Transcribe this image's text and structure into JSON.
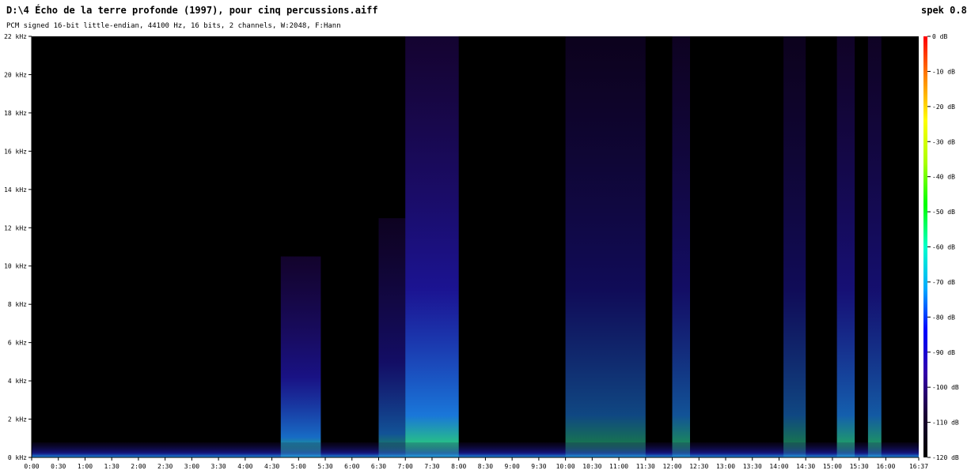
{
  "header": {
    "title": "D:\\4 Écho de la terre profonde (1997), pour cinq percussions.aiff",
    "subtitle": "PCM signed 16-bit little-endian, 44100 Hz, 16 bits, 2 channels, W:2048, F:Hann",
    "app_label": "spek 0.8"
  },
  "chart_data": {
    "type": "heatmap",
    "title": "D:\\4 Écho de la terre profonde (1997), pour cinq percussions.aiff",
    "subtitle": "PCM signed 16-bit little-endian, 44100 Hz, 16 bits, 2 channels, W:2048, F:Hann",
    "x_ticks": [
      "0:00",
      "0:30",
      "1:00",
      "1:30",
      "2:00",
      "2:30",
      "3:00",
      "3:30",
      "4:00",
      "4:30",
      "5:00",
      "5:30",
      "6:00",
      "6:30",
      "7:00",
      "7:30",
      "8:00",
      "8:30",
      "9:00",
      "9:30",
      "10:00",
      "10:30",
      "11:00",
      "11:30",
      "12:00",
      "12:30",
      "13:00",
      "13:30",
      "14:00",
      "14:30",
      "15:00",
      "15:30",
      "16:00",
      "16:37"
    ],
    "xlim_seconds": [
      0,
      997
    ],
    "y_ticks": [
      "0 kHz",
      "2 kHz",
      "4 kHz",
      "6 kHz",
      "8 kHz",
      "10 kHz",
      "12 kHz",
      "14 kHz",
      "16 kHz",
      "18 kHz",
      "20 kHz",
      "22 kHz"
    ],
    "ylim_khz": [
      0,
      22
    ],
    "colorbar_ticks": [
      "0 dB",
      "-10 dB",
      "-20 dB",
      "-30 dB",
      "-40 dB",
      "-50 dB",
      "-60 dB",
      "-70 dB",
      "-80 dB",
      "-90 dB",
      "-100 dB",
      "-110 dB",
      "-120 dB"
    ],
    "colorbar_range_db": [
      -120,
      0
    ],
    "colormap": [
      "#000000",
      "#1a0033",
      "#3300aa",
      "#0000ff",
      "#00aaff",
      "#00ffcc",
      "#00ff00",
      "#aaff00",
      "#ffff00",
      "#ff8800",
      "#ff0000"
    ],
    "events": [
      {
        "start": 280,
        "end": 325,
        "peak_khz": 10.5,
        "level": 0.9
      },
      {
        "start": 390,
        "end": 420,
        "peak_khz": 12.5,
        "level": 0.7
      },
      {
        "start": 420,
        "end": 480,
        "peak_khz": 22,
        "level": 1.0
      },
      {
        "start": 600,
        "end": 690,
        "peak_khz": 22,
        "level": 0.6
      },
      {
        "start": 720,
        "end": 740,
        "peak_khz": 22,
        "level": 0.7
      },
      {
        "start": 845,
        "end": 870,
        "peak_khz": 22,
        "level": 0.6
      },
      {
        "start": 905,
        "end": 925,
        "peak_khz": 22,
        "level": 0.8
      },
      {
        "start": 940,
        "end": 955,
        "peak_khz": 22,
        "level": 0.75
      }
    ]
  }
}
